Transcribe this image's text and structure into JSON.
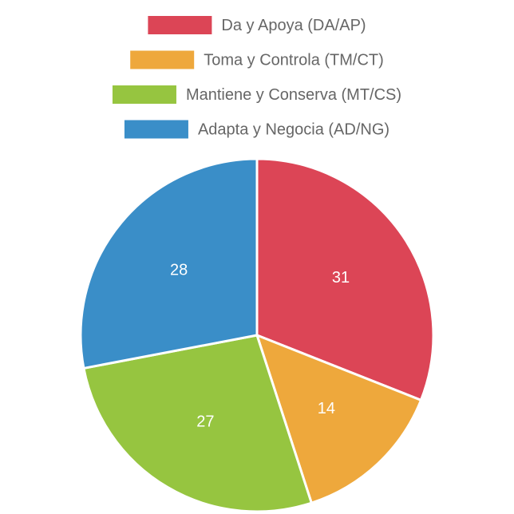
{
  "chart_data": {
    "type": "pie",
    "categories": [
      "Da y Apoya (DA/AP)",
      "Toma y Controla (TM/CT)",
      "Mantiene y Conserva (MT/CS)",
      "Adapta y Negocia (AD/NG)"
    ],
    "values": [
      31,
      14,
      27,
      28
    ],
    "colors": [
      "#dc4556",
      "#eea83c",
      "#96c540",
      "#3a8ec8"
    ],
    "legend": "top"
  }
}
